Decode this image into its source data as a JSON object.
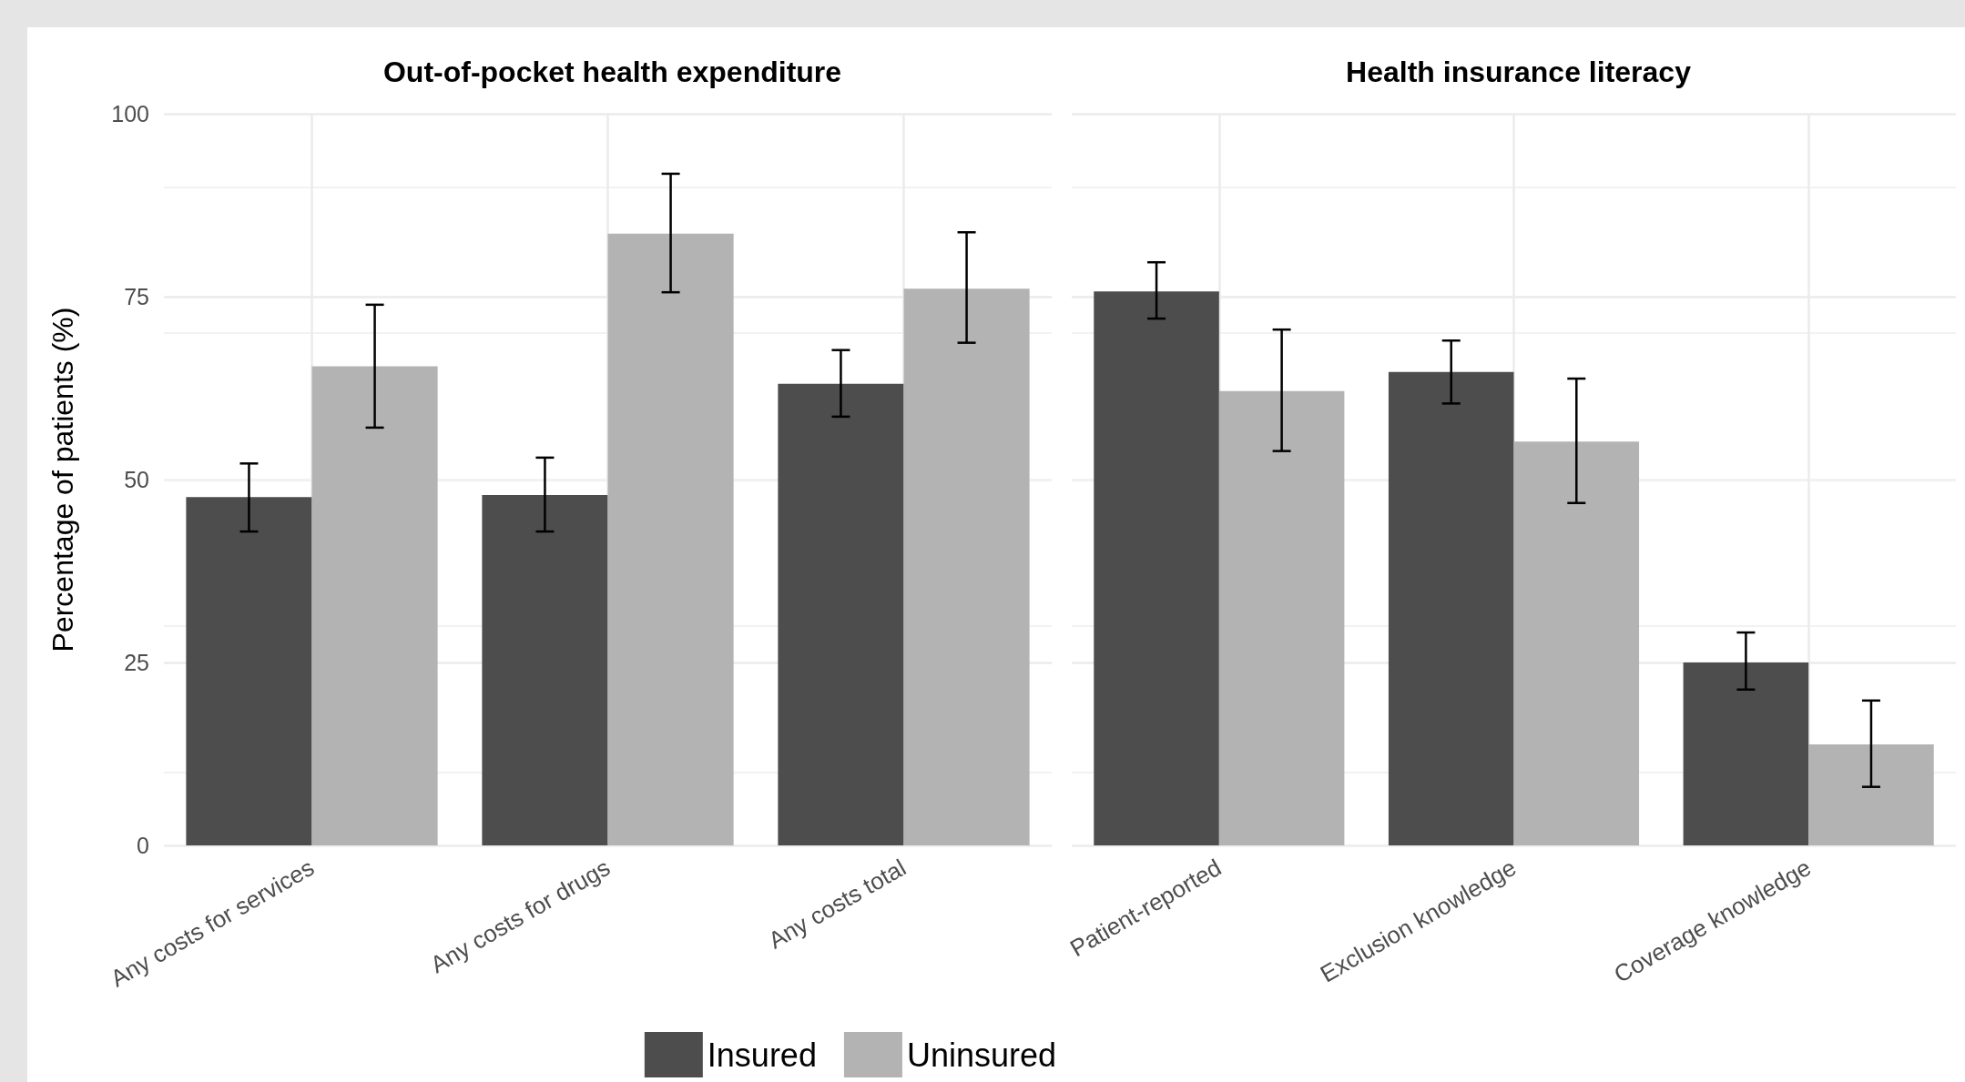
{
  "chart_data": [
    {
      "type": "bar",
      "title": "Out-of-pocket health expenditure",
      "ylabel": "Percentage of patients (%)",
      "categories": [
        "Any costs for services",
        "Any costs for drugs",
        "Any costs total"
      ],
      "series": [
        {
          "name": "Insured",
          "color": "#4d4d4d",
          "values": [
            47.6,
            47.9,
            63.1
          ],
          "errors": [
            [
              42.9,
              52.2
            ],
            [
              42.9,
              53.0
            ],
            [
              58.6,
              67.7
            ]
          ]
        },
        {
          "name": "Uninsured",
          "color": "#b3b3b3",
          "values": [
            65.5,
            83.6,
            76.1
          ],
          "errors": [
            [
              57.1,
              73.9
            ],
            [
              75.6,
              91.8
            ],
            [
              68.7,
              83.8
            ]
          ]
        }
      ],
      "ylim": [
        0,
        100
      ],
      "yticks": [
        0,
        25,
        50,
        75,
        100
      ],
      "grid": true,
      "legend": "bottom"
    },
    {
      "type": "bar",
      "title": "Health insurance literacy",
      "categories": [
        "Patient-reported",
        "Exclusion knowledge",
        "Coverage knowledge"
      ],
      "series": [
        {
          "color": "#4d4d4d",
          "values": [
            75.7,
            64.7,
            25.0
          ],
          "errors": [
            [
              72.0,
              79.7
            ],
            [
              60.4,
              69.0
            ],
            [
              21.3,
              29.1
            ]
          ]
        },
        {
          "color": "#b3b3b3",
          "values": [
            62.1,
            55.2,
            13.8
          ],
          "errors": [
            [
              53.9,
              70.5
            ],
            [
              46.8,
              63.8
            ],
            [
              8.0,
              19.8
            ]
          ]
        }
      ],
      "ylim": [
        0,
        100
      ],
      "yticks": [
        0,
        25,
        50,
        75,
        100
      ],
      "grid": true,
      "tick_labels": "x"
    }
  ]
}
